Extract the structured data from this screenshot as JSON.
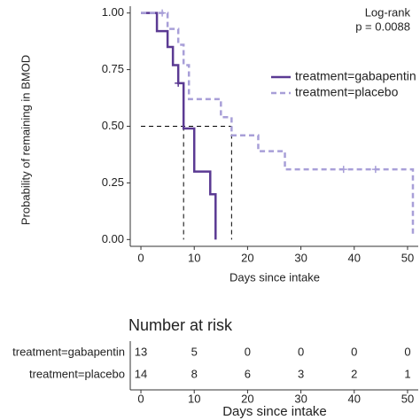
{
  "chart_data": {
    "type": "km",
    "y_label": "Probability of remaining in BMOD",
    "x_label": "Days since intake",
    "annotation": [
      "Log-rank",
      "p = 0.0088"
    ],
    "xlim": [
      -2,
      52
    ],
    "xticks": [
      0,
      10,
      20,
      30,
      40,
      50
    ],
    "ylim": [
      -0.03,
      1.03
    ],
    "yticks": [
      {
        "value": 0,
        "label": "0.00"
      },
      {
        "value": 0.25,
        "label": "0.25"
      },
      {
        "value": 0.5,
        "label": "0.50"
      },
      {
        "value": 0.75,
        "label": "0.75"
      },
      {
        "value": 1,
        "label": "1.00"
      }
    ],
    "median_level": 0.5,
    "medians": [
      8,
      17
    ],
    "series": [
      {
        "name": "treatment=gabapentin",
        "color": "#5b3a93",
        "dash": false,
        "x": [
          0,
          3,
          3,
          5,
          5,
          6,
          6,
          7,
          7,
          8,
          8,
          10,
          10,
          13,
          13,
          14,
          14
        ],
        "values": [
          1,
          1,
          0.92,
          0.92,
          0.85,
          0.85,
          0.77,
          0.77,
          0.69,
          0.69,
          0.49,
          0.49,
          0.3,
          0.3,
          0.2,
          0.2,
          0
        ],
        "censor_x": [
          7
        ],
        "censor_values": [
          0.69
        ]
      },
      {
        "name": "treatment=placebo",
        "color": "#a89fd8",
        "dash": true,
        "x": [
          0,
          5,
          5,
          7,
          7,
          8,
          8,
          9,
          9,
          15,
          15,
          17,
          17,
          22,
          22,
          27,
          27,
          51,
          51
        ],
        "values": [
          1,
          1,
          0.93,
          0.93,
          0.86,
          0.86,
          0.77,
          0.77,
          0.62,
          0.62,
          0.54,
          0.54,
          0.46,
          0.46,
          0.39,
          0.39,
          0.31,
          0.31,
          0.02
        ],
        "censor_x": [
          4,
          38,
          44
        ],
        "censor_values": [
          1,
          0.31,
          0.31
        ]
      }
    ],
    "risk_table": {
      "title": "Number at risk",
      "x_label": "Days since intake",
      "times": [
        0,
        10,
        20,
        30,
        40,
        50
      ],
      "rows": [
        {
          "name": "treatment=gabapentin",
          "values": [
            13,
            5,
            0,
            0,
            0,
            0
          ]
        },
        {
          "name": "treatment=placebo",
          "values": [
            14,
            8,
            6,
            3,
            2,
            1
          ]
        }
      ]
    }
  }
}
